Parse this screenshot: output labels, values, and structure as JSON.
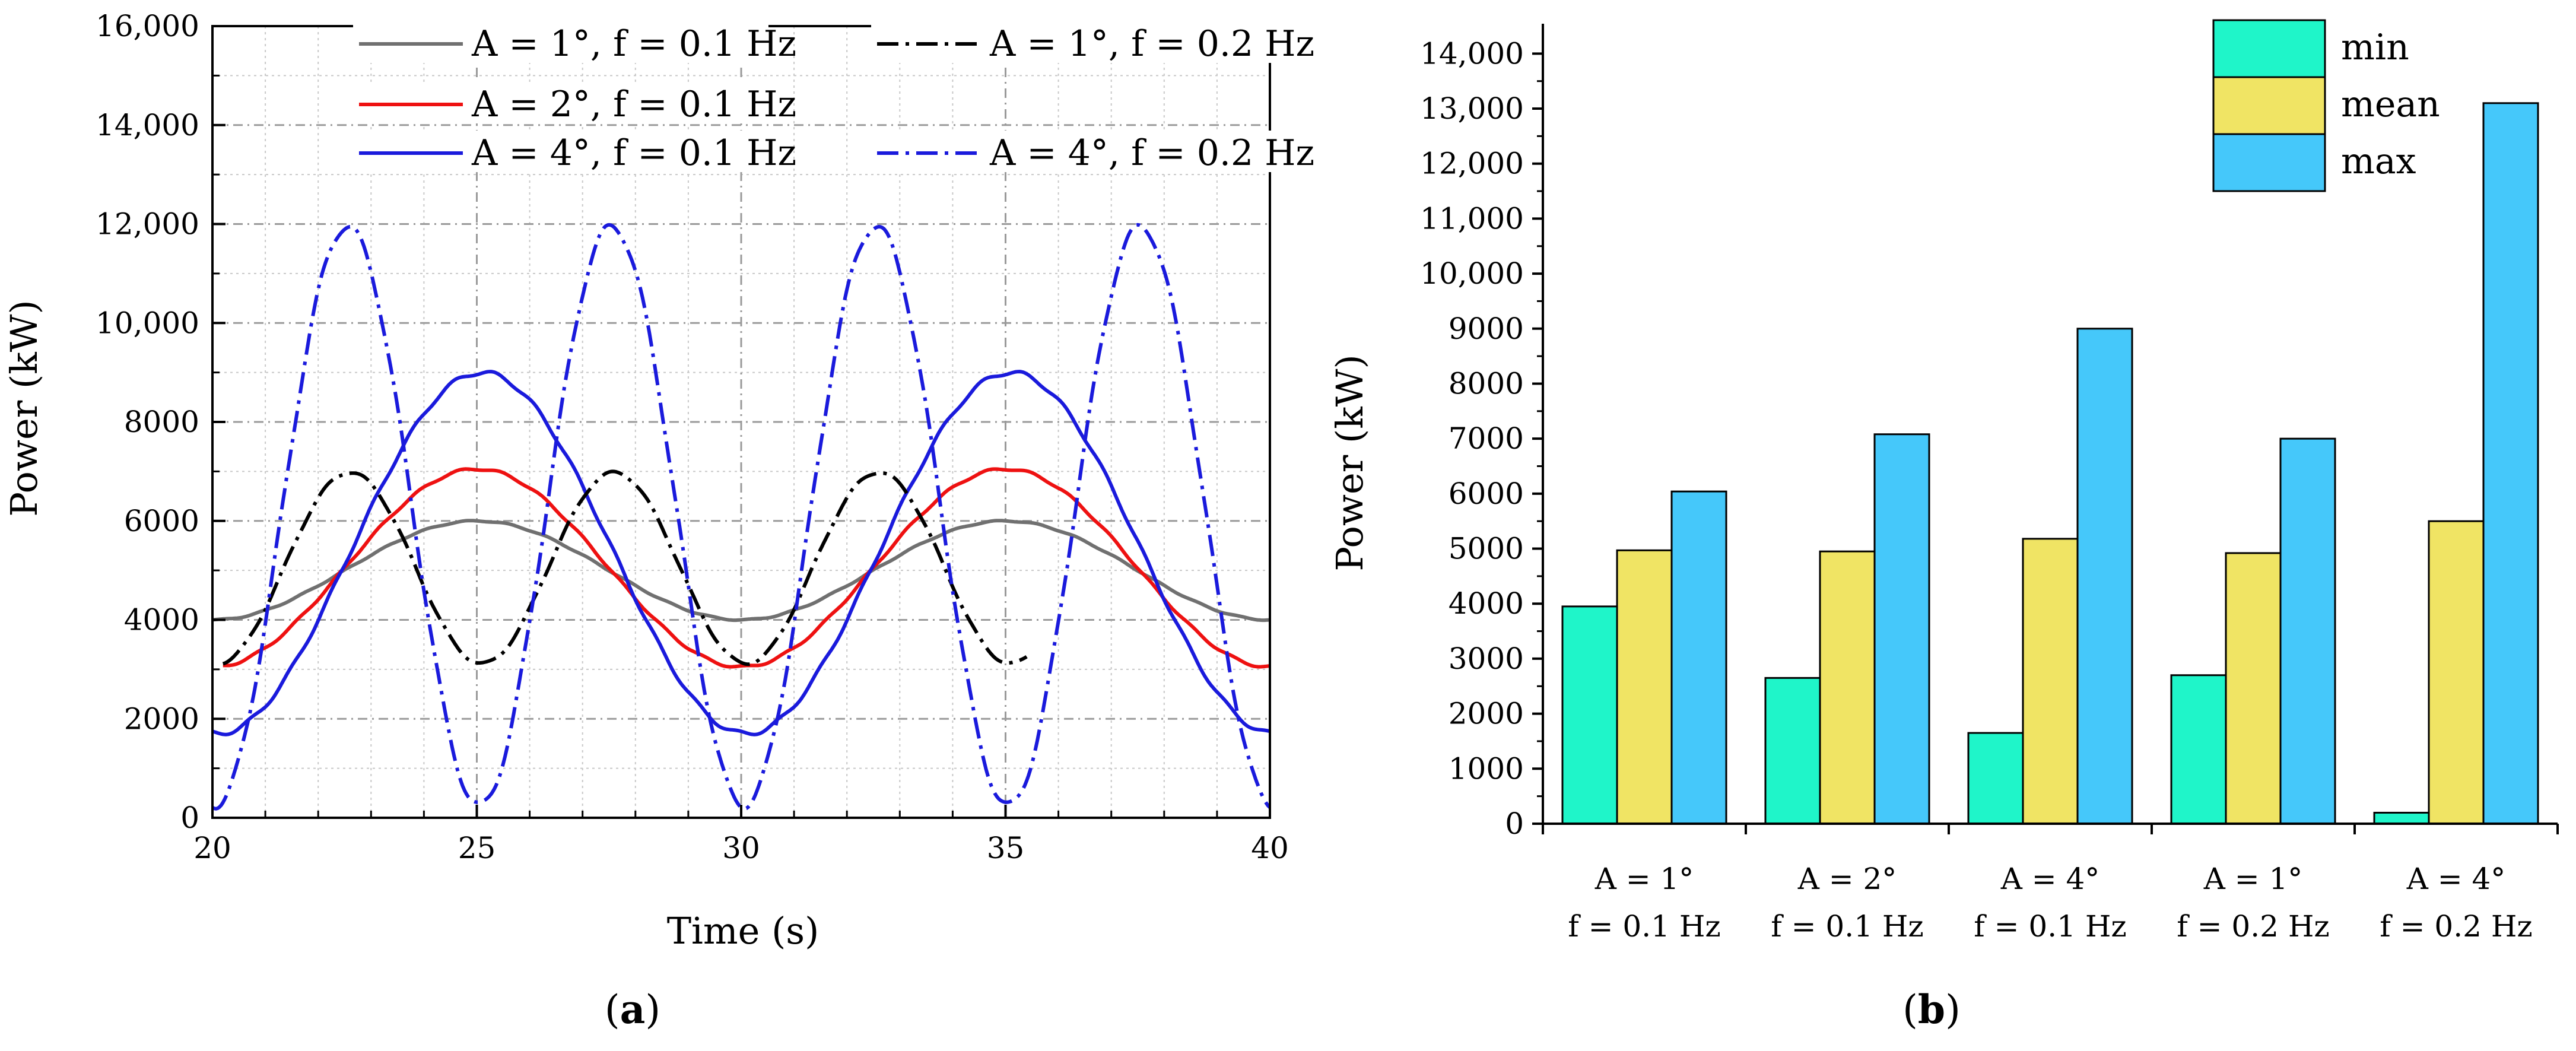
{
  "chart_data": [
    {
      "id": "a",
      "type": "line",
      "panel_label": "(a)",
      "panel_letter": "a",
      "xlabel": "Time (s)",
      "ylabel": "Power (kW)",
      "xlim": [
        20,
        40
      ],
      "ylim": [
        0,
        16000
      ],
      "x_ticks": [
        20,
        25,
        30,
        35,
        40
      ],
      "y_ticks": [
        0,
        2000,
        4000,
        6000,
        8000,
        10000,
        12000,
        14000,
        16000
      ],
      "y_tick_labels": [
        "0",
        "2000",
        "4000",
        "6000",
        "8000",
        "10,000",
        "12,000",
        "14,000",
        "16,000"
      ],
      "grid": true,
      "series": [
        {
          "name": "A = 1°, f = 0.1 Hz",
          "color": "#707070",
          "dash": "solid",
          "mean": 5000,
          "amp": 1000,
          "freq": 0.1,
          "phase_peak": 25,
          "t_start": 20,
          "t_end": 40
        },
        {
          "name": "A = 2°, f = 0.1 Hz",
          "color": "#ee1111",
          "dash": "solid",
          "mean": 5050,
          "amp": 2000,
          "freq": 0.1,
          "phase_peak": 25,
          "t_start": 20.2,
          "t_end": 40
        },
        {
          "name": "A = 4°, f = 0.1 Hz",
          "color": "#1a1adc",
          "dash": "solid",
          "mean": 5350,
          "amp": 3650,
          "freq": 0.1,
          "phase_peak": 25.1,
          "t_start": 20,
          "t_end": 40
        },
        {
          "name": "A = 1°, f = 0.2 Hz",
          "color": "#000000",
          "dash": "dashdot",
          "mean": 5050,
          "amp": 1930,
          "freq": 0.2,
          "phase_peak": 22.6,
          "t_start": 20.2,
          "t_end": 35.4
        },
        {
          "name": "A = 4°, f = 0.2 Hz",
          "color": "#1a1adc",
          "dash": "dashdot",
          "mean": 6100,
          "amp": 5850,
          "freq": 0.2,
          "phase_peak": 22.55,
          "t_start": 20,
          "t_end": 40
        }
      ]
    },
    {
      "id": "b",
      "type": "bar",
      "panel_label": "(b)",
      "panel_letter": "b",
      "xlabel": "",
      "ylabel": "Power (kW)",
      "ylim": [
        0,
        14500
      ],
      "y_ticks": [
        0,
        1000,
        2000,
        3000,
        4000,
        5000,
        6000,
        7000,
        8000,
        9000,
        10000,
        11000,
        12000,
        13000,
        14000
      ],
      "y_tick_labels": [
        "0",
        "1000",
        "2000",
        "3000",
        "4000",
        "5000",
        "6000",
        "7000",
        "8000",
        "9000",
        "10,000",
        "11,000",
        "12,000",
        "13,000",
        "14,000"
      ],
      "categories": [
        {
          "line1": "A = 1°",
          "line2": "f = 0.1 Hz"
        },
        {
          "line1": "A = 2°",
          "line2": "f = 0.1 Hz"
        },
        {
          "line1": "A = 4°",
          "line2": "f = 0.1 Hz"
        },
        {
          "line1": "A = 1°",
          "line2": "f = 0.2 Hz"
        },
        {
          "line1": "A = 4°",
          "line2": "f = 0.2 Hz"
        }
      ],
      "series": [
        {
          "name": "min",
          "color": "#1ff5c9",
          "values": [
            3950,
            2650,
            1650,
            2700,
            200
          ]
        },
        {
          "name": "mean",
          "color": "#f0e464",
          "values": [
            4970,
            4950,
            5180,
            4920,
            5500
          ]
        },
        {
          "name": "max",
          "color": "#45c8fa",
          "values": [
            6040,
            7080,
            9000,
            7000,
            13100
          ]
        }
      ]
    }
  ]
}
